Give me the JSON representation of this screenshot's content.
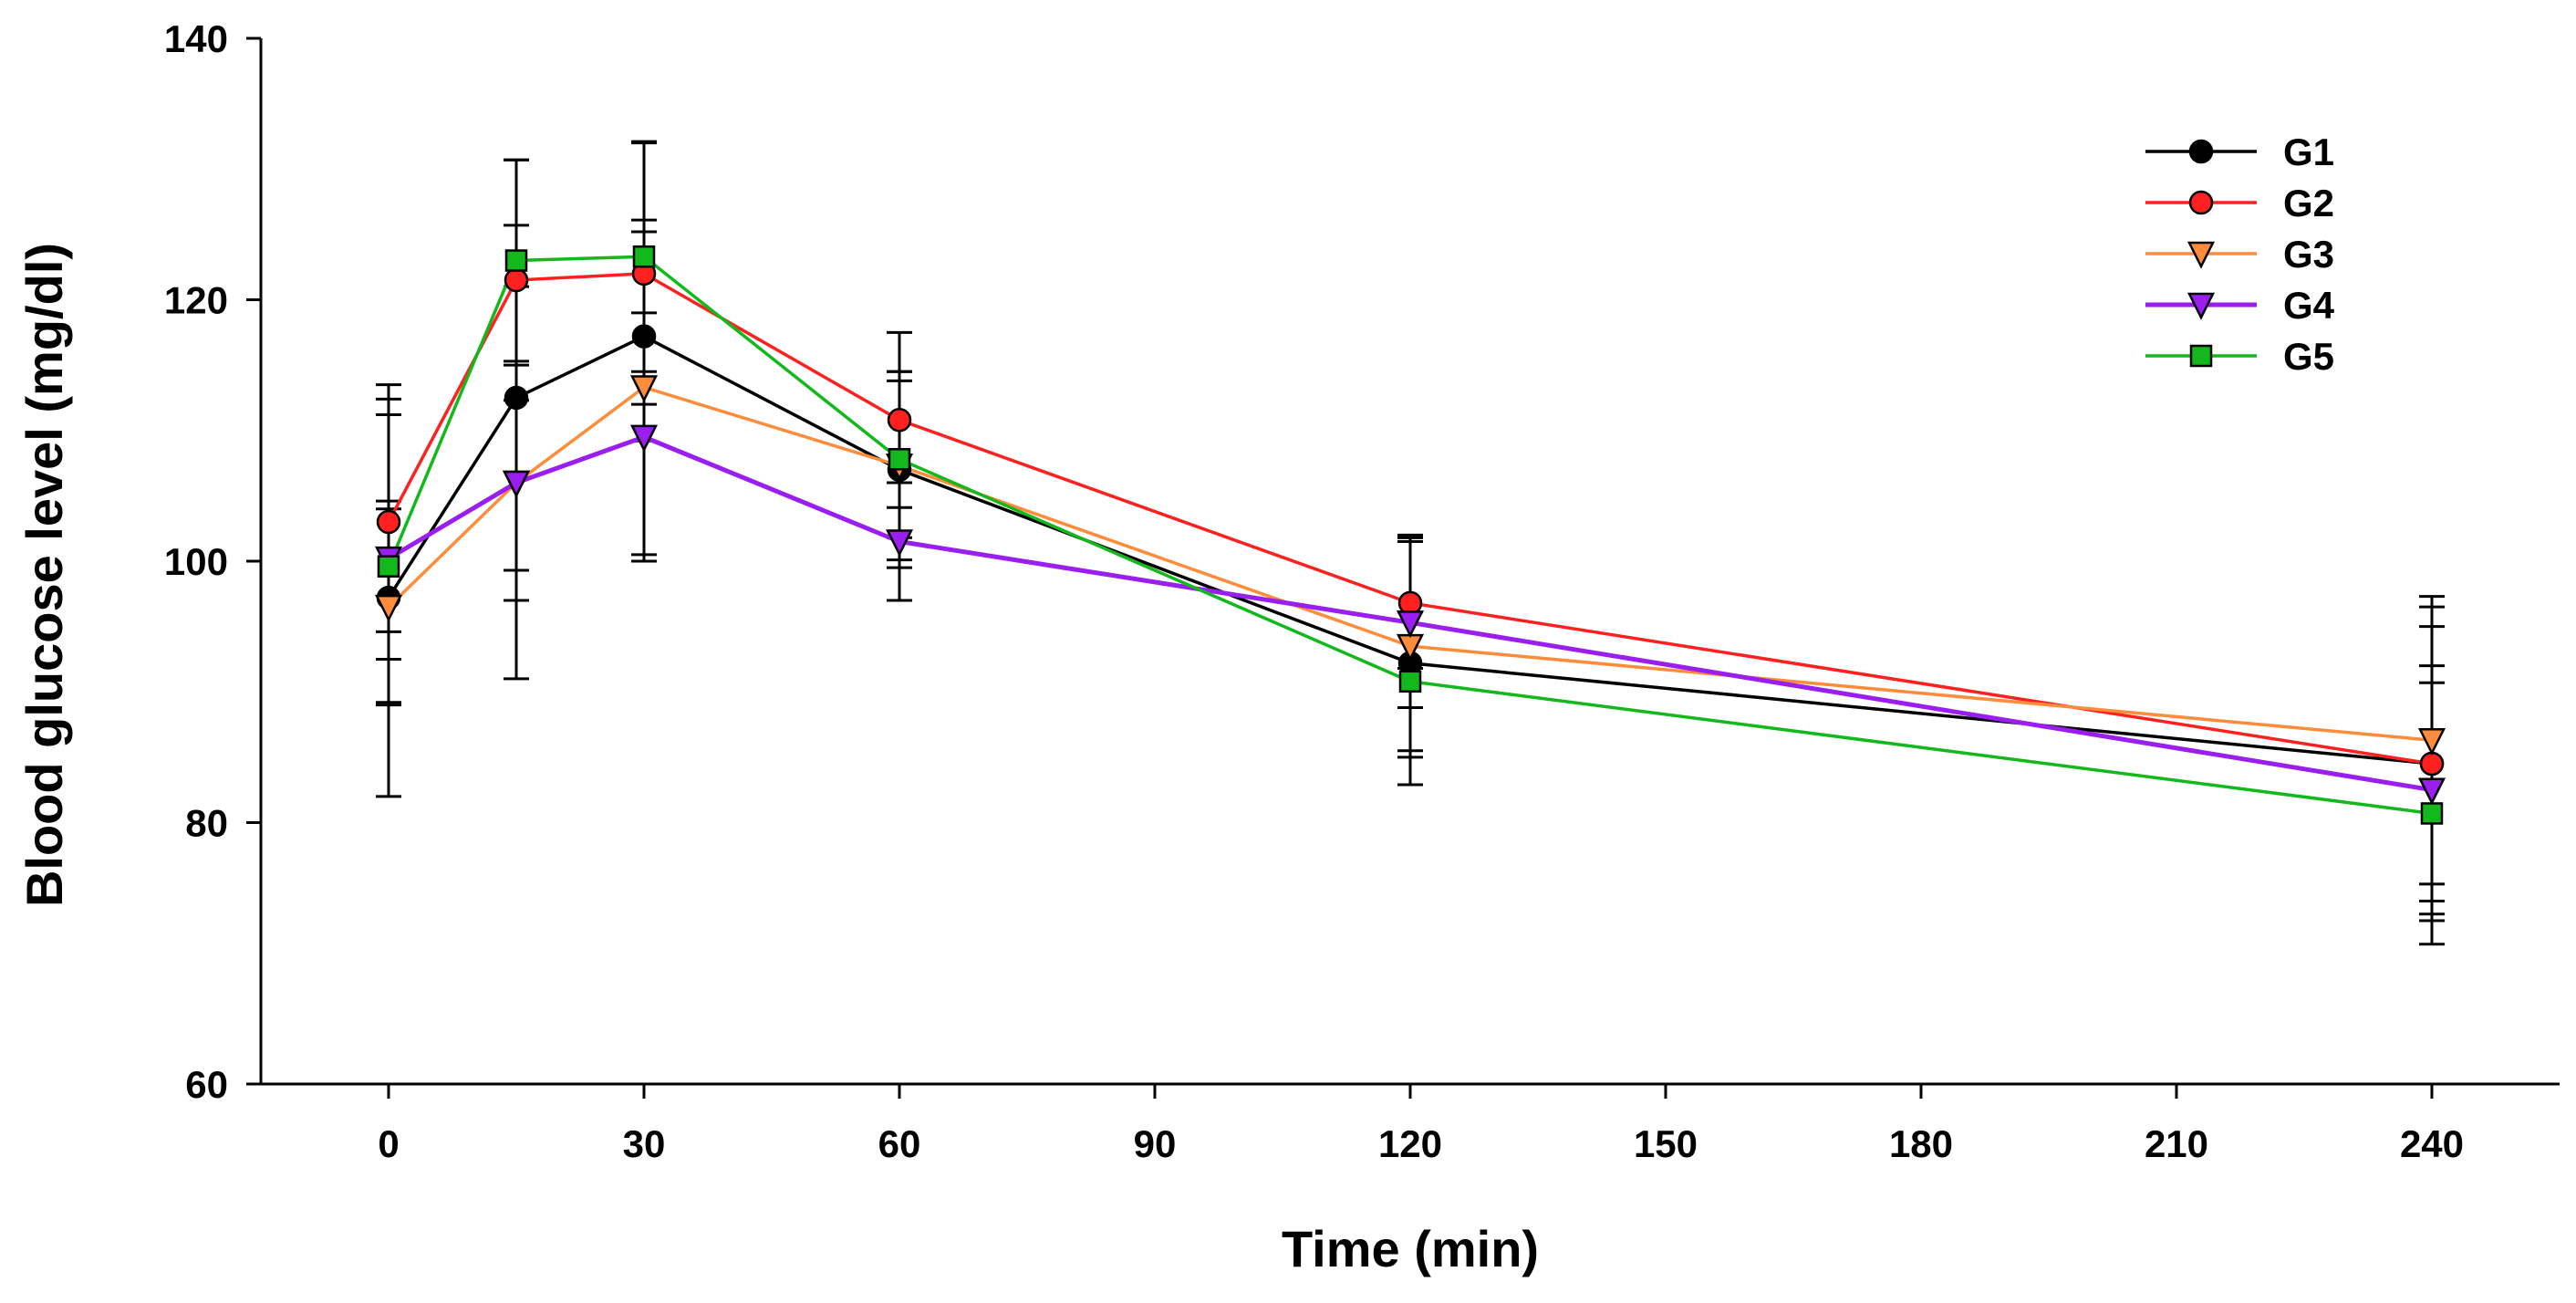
{
  "chart_data": {
    "type": "line",
    "title": "",
    "xlabel": "Time (min)",
    "ylabel": "Blood glucose level (mg/dl)",
    "x": [
      0,
      15,
      30,
      60,
      120,
      240
    ],
    "xlim": [
      -15,
      255
    ],
    "ylim": [
      60,
      140
    ],
    "xticks": [
      0,
      30,
      60,
      90,
      120,
      150,
      180,
      210,
      240
    ],
    "yticks": [
      60,
      80,
      100,
      120,
      140
    ],
    "xtick_labels": [
      "0",
      "30",
      "60",
      "90",
      "120",
      "150",
      "180",
      "210",
      "240"
    ],
    "ytick_labels": [
      "60",
      "80",
      "100",
      "120",
      "140"
    ],
    "legend_position": "top-right",
    "grid": false,
    "series": [
      {
        "name": "G1",
        "color": "#000000",
        "marker": "circle",
        "values": [
          97.2,
          112.5,
          117.2,
          107.0,
          92.2,
          84.5
        ],
        "errors": [
          15.2,
          13.2,
          8.0,
          7.5,
          9.3,
          12.0
        ]
      },
      {
        "name": "G2",
        "color": "#ff2020",
        "marker": "circle",
        "values": [
          103.0,
          121.5,
          122.0,
          110.8,
          96.8,
          84.5
        ],
        "errors": [
          10.5,
          9.2,
          10.0,
          6.7,
          5.0,
          10.5
        ]
      },
      {
        "name": "G3",
        "color": "#ff8c3a",
        "marker": "triangle-down",
        "values": [
          96.5,
          106.0,
          113.3,
          107.3,
          93.5,
          86.3
        ],
        "errors": [
          7.5,
          9.0,
          12.8,
          7.2,
          8.5,
          11.0
        ]
      },
      {
        "name": "G4",
        "color": "#9b1ef0",
        "marker": "triangle-down",
        "values": [
          100.2,
          106.0,
          109.5,
          101.5,
          95.3,
          82.5
        ],
        "errors": [
          11.0,
          15.0,
          9.5,
          4.5,
          6.5,
          9.5
        ]
      },
      {
        "name": "G5",
        "color": "#12b81c",
        "marker": "square",
        "values": [
          99.6,
          123.0,
          123.3,
          107.8,
          90.8,
          80.7
        ],
        "errors": [
          5.0,
          7.7,
          8.8,
          6.0,
          5.3,
          10.0
        ]
      }
    ]
  }
}
